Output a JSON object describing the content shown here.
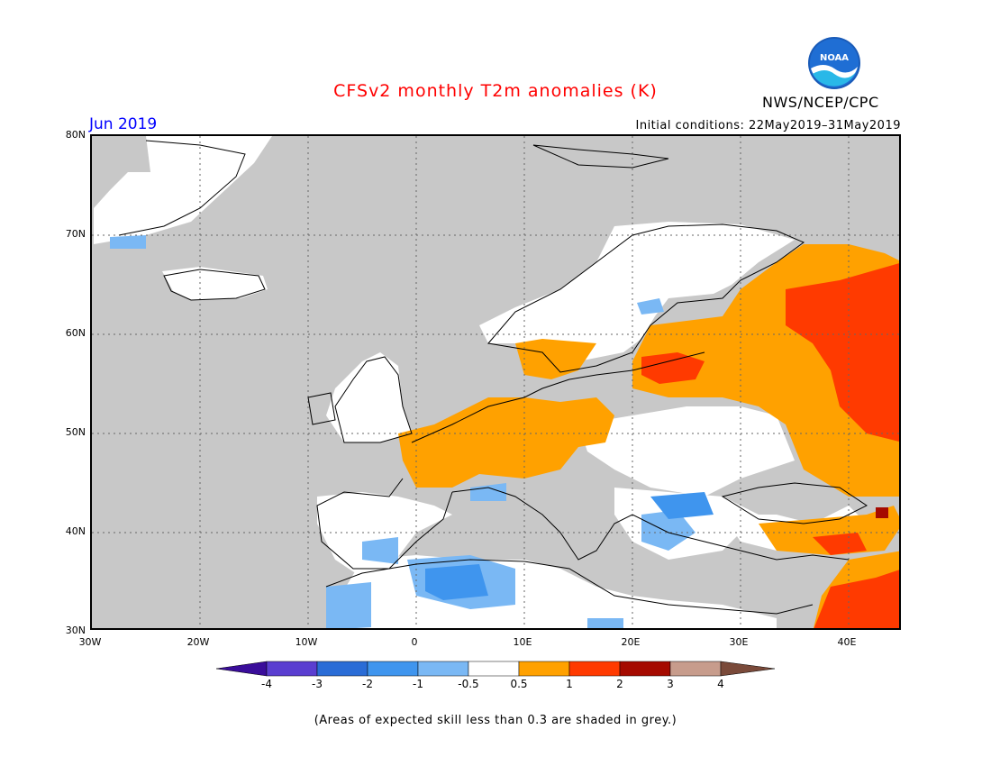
{
  "title": "CFSv2 monthly T2m anomalies (K)",
  "month": "Jun 2019",
  "initial_conditions": "Initial conditions: 22May2019–31May2019",
  "organization": "NWS/NCEP/CPC",
  "logo_text": "NOAA",
  "lat_labels": [
    "80N",
    "70N",
    "60N",
    "50N",
    "40N",
    "30N"
  ],
  "lon_labels": [
    "30W",
    "20W",
    "10W",
    "0",
    "10E",
    "20E",
    "30E",
    "40E"
  ],
  "colorbar": {
    "labels": [
      "-4",
      "-3",
      "-2",
      "-1",
      "-0.5",
      "0.5",
      "1",
      "2",
      "3",
      "4"
    ],
    "colors": [
      "#3a0d9a",
      "#5a3ed0",
      "#2a6cd6",
      "#3f95ee",
      "#7ab8f4",
      "#ffffff",
      "#ffa100",
      "#ff3a00",
      "#a50a00",
      "#c79c8c",
      "#7a4a3a"
    ]
  },
  "footnote": "(Areas of expected skill less than 0.3 are shaded in grey.)",
  "map_colors": {
    "no_skill": "#c8c8c8",
    "near_normal": "#ffffff",
    "warm_0_5_1": "#ffa100",
    "warm_1_2": "#ff3a00",
    "warm_2_3": "#a50a00",
    "cool_m1_m0_5": "#7ab8f4",
    "cool_m2_m1": "#3f95ee"
  }
}
